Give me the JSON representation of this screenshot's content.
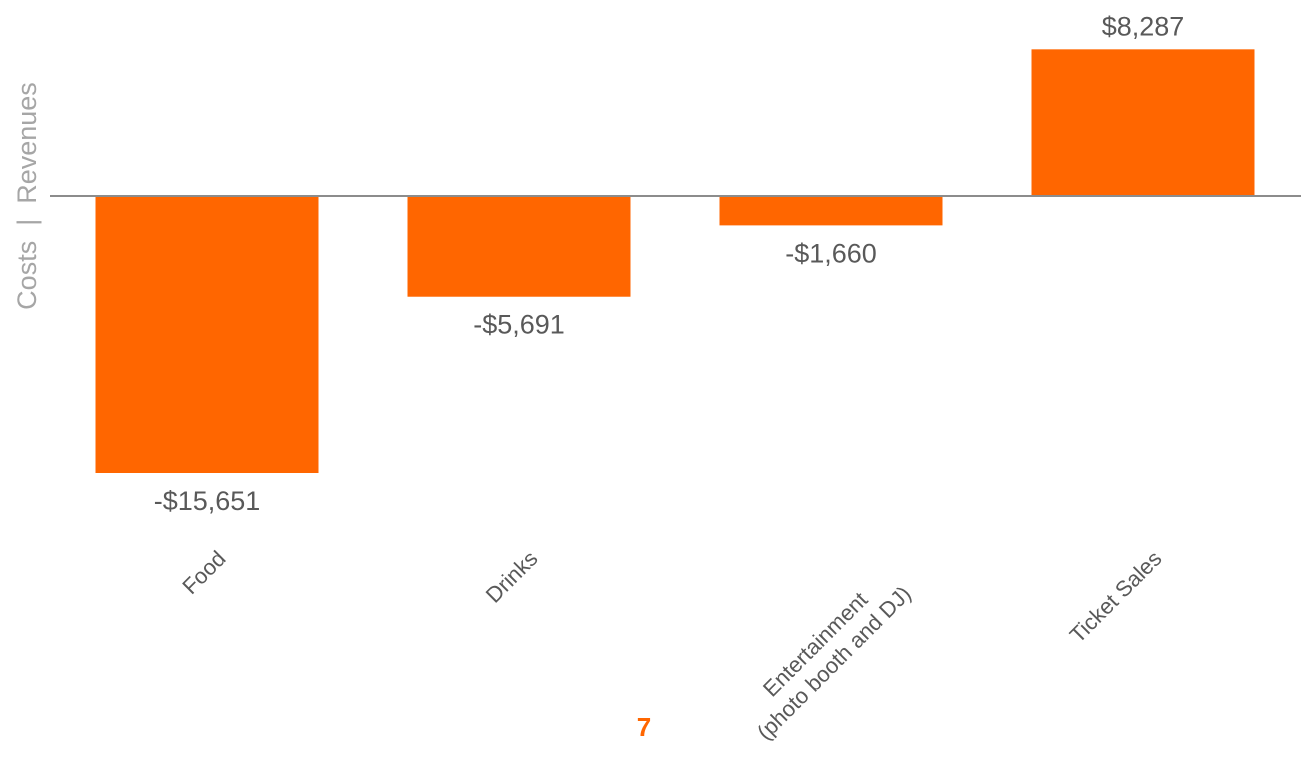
{
  "chart_data": {
    "type": "bar",
    "categories": [
      "Food",
      "Drinks",
      "Entertainment\n(photo booth and DJ)",
      "Ticket Sales"
    ],
    "values": [
      -15651,
      -5691,
      -1660,
      8287
    ],
    "value_labels": [
      "-$15,651",
      "-$5,691",
      "-$1,660",
      "$8,287"
    ],
    "ylabel": "Costs  |  Revenues",
    "bar_color": "#ff6600",
    "axis_color": "#8c8c8c",
    "label_color": "#595959",
    "ylabel_color": "#a6a6a6",
    "grid": false,
    "legend": "none"
  },
  "page": {
    "number": "7",
    "number_color": "#ff6600"
  }
}
